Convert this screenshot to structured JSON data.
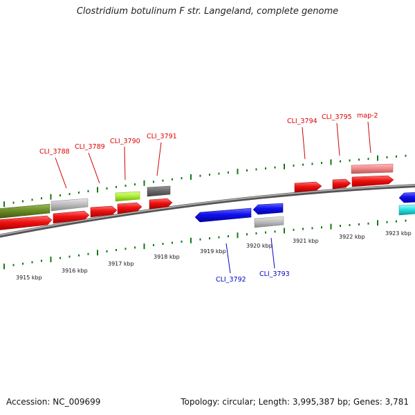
{
  "title": "Clostridium botulinum F str. Langeland, complete genome",
  "footer": {
    "accession": "Accession: NC_009699",
    "topology": "Topology: circular; Length: 3,995,387 bp; Genes: 3,781"
  },
  "scale_labels": [
    "3915 kbp",
    "3916 kbp",
    "3917 kbp",
    "3918 kbp",
    "3919 kbp",
    "3920 kbp",
    "3921 kbp",
    "3922 kbp",
    "3923 kbp"
  ],
  "colors": {
    "forward_label": "#dd0000",
    "reverse_label": "#0000cc",
    "backbone": "#888888",
    "tick": "#117711",
    "red_gene": "#ee1111",
    "blue_gene": "#1111ee",
    "grey_gene": "#bbbbbb",
    "olive_gene": "#668822",
    "lime_gene": "#aaee33",
    "darkgrey_gene": "#666666",
    "pink_gene": "#ee8888",
    "cyan_gene": "#22dddd"
  },
  "gene_labels": {
    "forward": [
      "CLI_3788",
      "CLI_3789",
      "CLI_3790",
      "CLI_3791",
      "CLI_3794",
      "CLI_3795",
      "map-2"
    ],
    "reverse": [
      "CLI_3792",
      "CLI_3793"
    ]
  }
}
